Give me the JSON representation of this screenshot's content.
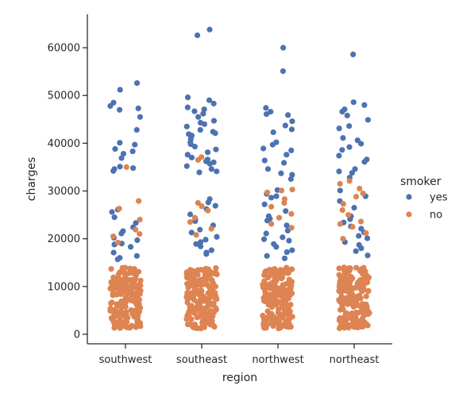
{
  "chart_data": {
    "type": "scatter",
    "subtype": "strip",
    "xlabel": "region",
    "ylabel": "charges",
    "categories": [
      "southwest",
      "southeast",
      "northwest",
      "northeast"
    ],
    "ylim": [
      -2000,
      67000
    ],
    "yticks": [
      0,
      10000,
      20000,
      30000,
      40000,
      50000,
      60000
    ],
    "ytick_labels": [
      "0",
      "10000",
      "20000",
      "30000",
      "40000",
      "50000",
      "60000"
    ],
    "grid": false,
    "legend": {
      "title": "smoker",
      "placement": "right",
      "entries": [
        {
          "label": "yes",
          "color": "#4c72b0"
        },
        {
          "label": "no",
          "color": "#dd8452"
        }
      ]
    },
    "series": [
      {
        "name": "yes",
        "color": "#4c72b0",
        "points": {
          "southwest": [
            52600,
            51200,
            48500,
            47800,
            47300,
            47000,
            45500,
            42800,
            40100,
            39700,
            38800,
            38300,
            37800,
            36900,
            35100,
            34800,
            34600,
            34200,
            26100,
            25600,
            24500,
            23300,
            22400,
            21600,
            21100,
            20200,
            19700,
            19000,
            18800,
            18300,
            17100,
            16400,
            16000,
            15700
          ],
          "southeast": [
            63800,
            62600,
            49600,
            49000,
            48300,
            47500,
            47100,
            46700,
            46200,
            45500,
            44700,
            44300,
            44000,
            43500,
            42800,
            42400,
            42100,
            41900,
            41600,
            40900,
            40200,
            39800,
            39300,
            38700,
            38100,
            37600,
            37000,
            36600,
            36200,
            36000,
            35700,
            35200,
            34600,
            34100,
            33900,
            28300,
            27600,
            26900,
            26200,
            25100,
            24100,
            23700,
            22800,
            21900,
            21300,
            20400,
            19800,
            19300,
            18900,
            18400,
            17600,
            17100,
            16800
          ],
          "northwest": [
            60000,
            55100,
            47400,
            46600,
            46100,
            45900,
            44600,
            43700,
            42900,
            42300,
            40200,
            39700,
            38900,
            38500,
            37600,
            36400,
            35900,
            34600,
            33700,
            33400,
            32500,
            30200,
            29400,
            28900,
            28600,
            27200,
            25800,
            24700,
            24200,
            23800,
            22800,
            21700,
            21100,
            20300,
            19900,
            19600,
            18900,
            18300,
            17600,
            17200,
            16400,
            15900
          ],
          "northeast": [
            58600,
            48600,
            48000,
            47100,
            46600,
            45800,
            44900,
            43600,
            43100,
            41100,
            40600,
            39900,
            39200,
            38600,
            37400,
            36600,
            36100,
            34600,
            34100,
            33800,
            32800,
            30100,
            28900,
            27900,
            26500,
            24700,
            24100,
            23400,
            22600,
            22100,
            21300,
            20600,
            20100,
            19300,
            18700,
            18000,
            17400,
            16500
          ]
        }
      },
      {
        "name": "no",
        "color": "#dd8452",
        "points": {
          "southwest": [
            35000,
            27900,
            26300,
            24000,
            21900,
            21000,
            20500,
            19200
          ],
          "southeast": [
            37100,
            36500,
            27500,
            26800,
            25900,
            24400,
            23500,
            22100,
            20800
          ],
          "northwest": [
            30300,
            30100,
            29700,
            28300,
            27500,
            26700,
            25200,
            24400,
            23100,
            22300
          ],
          "northeast": [
            32100,
            31500,
            30500,
            29500,
            28800,
            27300,
            26000,
            25000,
            23600,
            23100,
            22500,
            21200,
            20000
          ]
        }
      }
    ]
  }
}
